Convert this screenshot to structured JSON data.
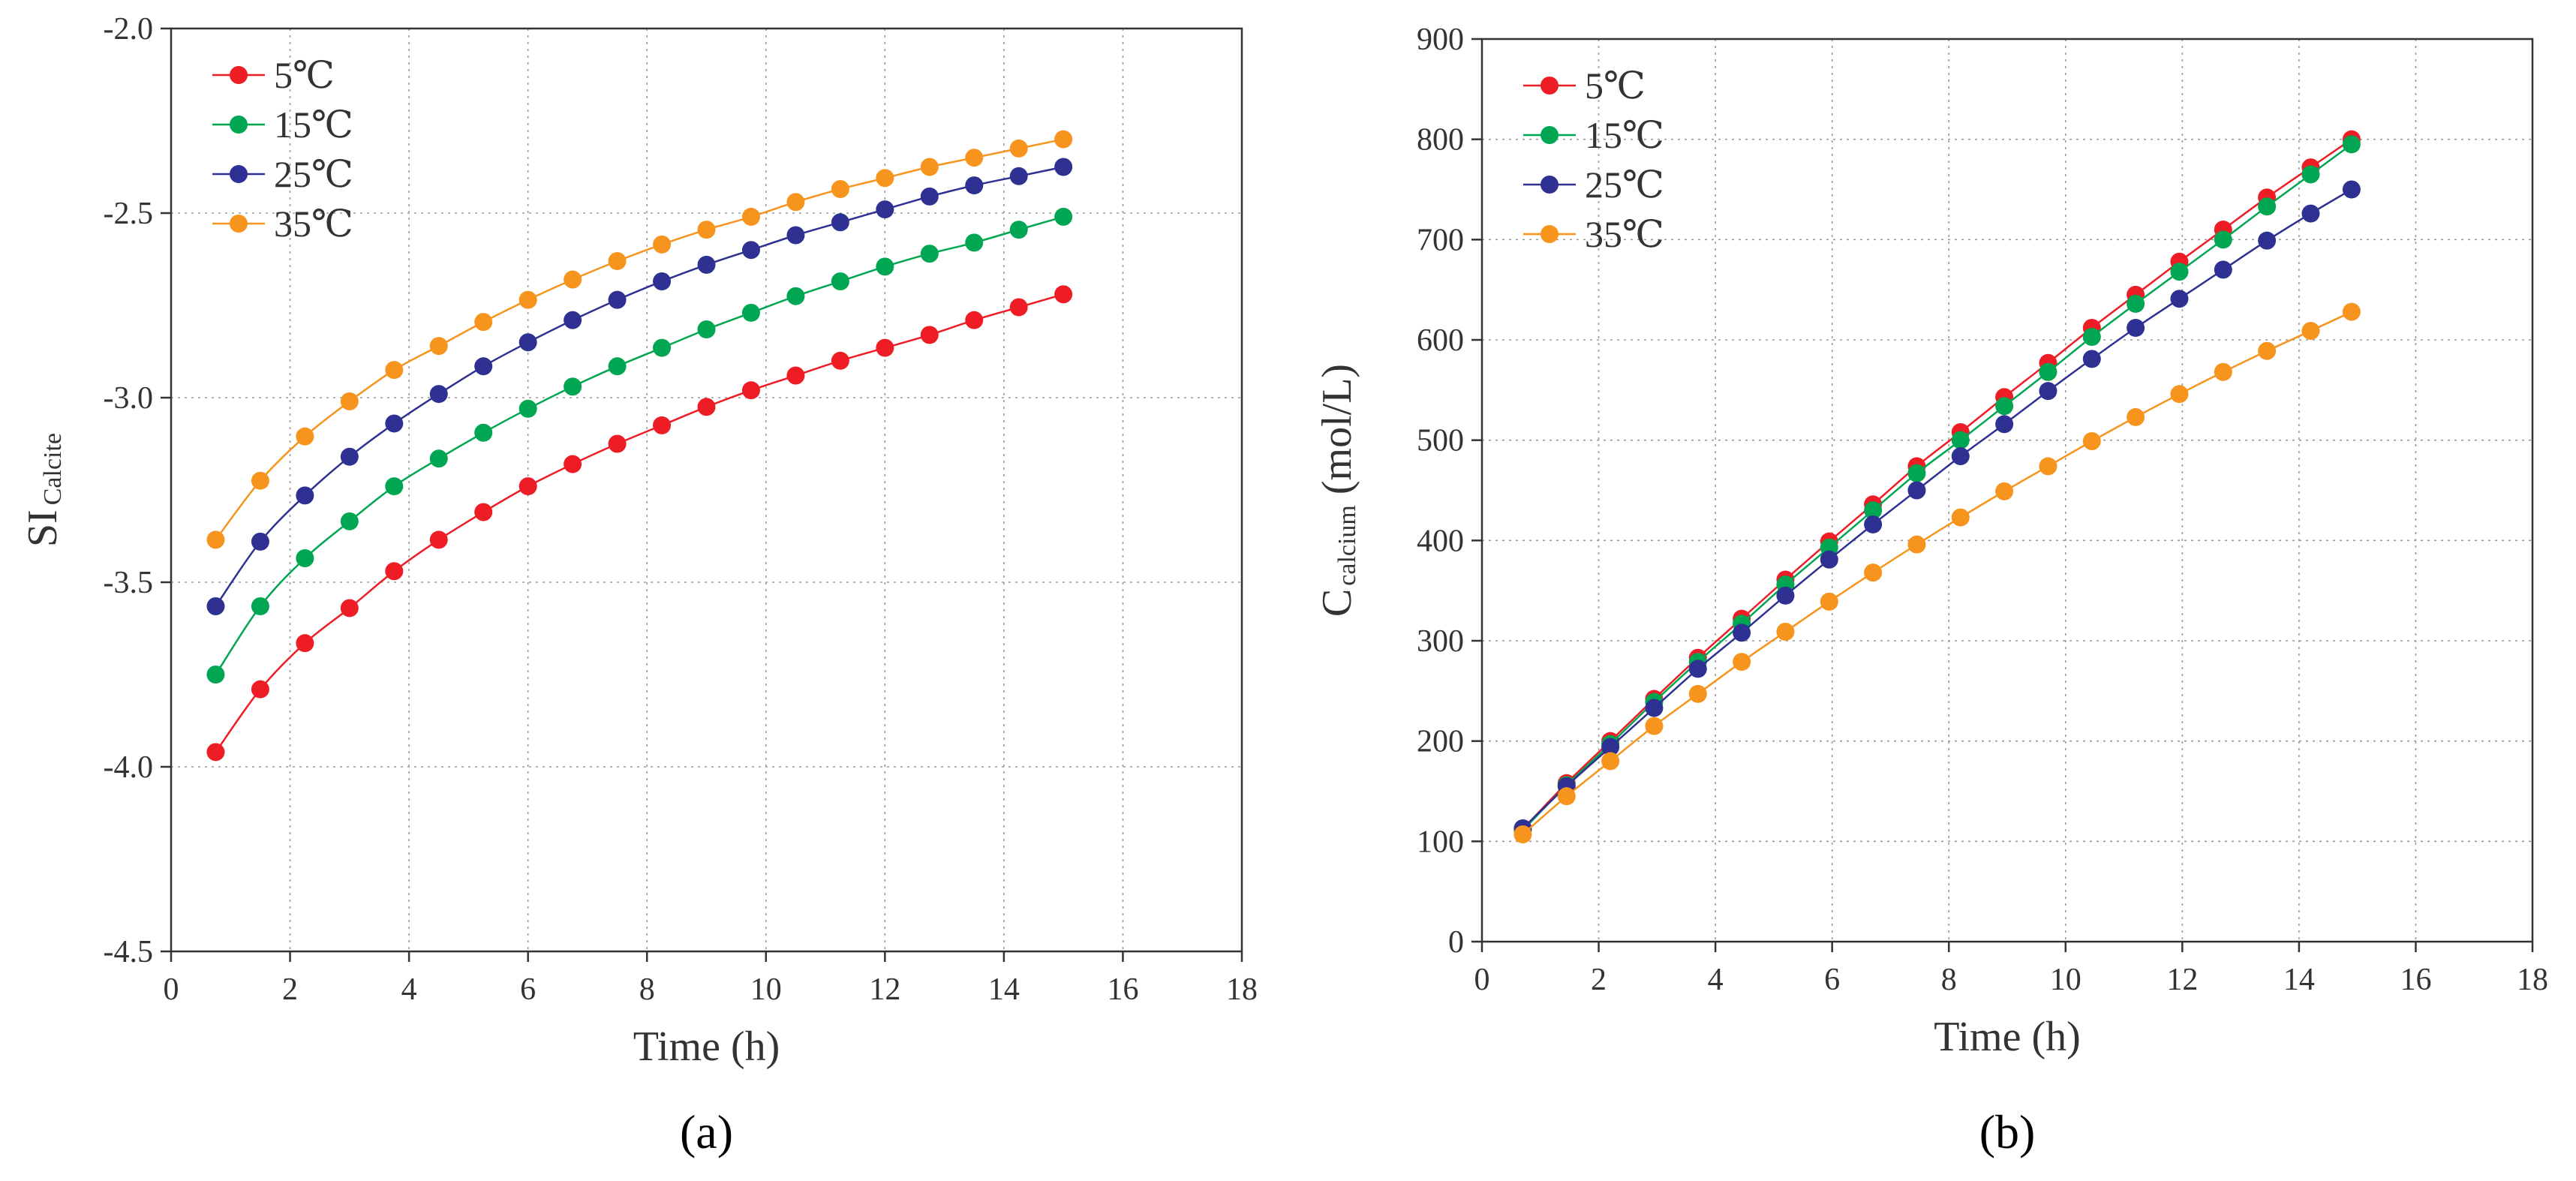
{
  "chart_data": [
    {
      "type": "line",
      "panel_label": "(a)",
      "title": "",
      "xlabel": "Time (h)",
      "ylabel": "SI",
      "ylabel_sub": "Calcite",
      "xlim": [
        0,
        18
      ],
      "ylim": [
        -4.5,
        -2.0
      ],
      "xticks": [
        0,
        2,
        4,
        6,
        8,
        10,
        12,
        14,
        16,
        18
      ],
      "yticks": [
        -4.5,
        -4.0,
        -3.5,
        -3.0,
        -2.5,
        -2.0
      ],
      "ytick_labels": [
        "-4.5",
        "-4.0",
        "-3.5",
        "-3.0",
        "-2.5",
        "-2.0"
      ],
      "grid": true,
      "legend_position": "top-left",
      "x": [
        0.75,
        1.5,
        2.25,
        3.0,
        3.75,
        4.5,
        5.25,
        6.0,
        6.75,
        7.5,
        8.25,
        9.0,
        9.75,
        10.5,
        11.25,
        12.0,
        12.75,
        13.5,
        14.25,
        15.0
      ],
      "series": [
        {
          "name": "5℃",
          "color": "#ee1c25",
          "values": [
            -3.96,
            -3.79,
            -3.665,
            -3.57,
            -3.47,
            -3.385,
            -3.31,
            -3.24,
            -3.18,
            -3.125,
            -3.075,
            -3.025,
            -2.98,
            -2.94,
            -2.9,
            -2.865,
            -2.83,
            -2.79,
            -2.755,
            -2.72
          ]
        },
        {
          "name": "15℃",
          "color": "#00a651",
          "values": [
            -3.75,
            -3.565,
            -3.435,
            -3.335,
            -3.24,
            -3.165,
            -3.095,
            -3.03,
            -2.97,
            -2.915,
            -2.865,
            -2.815,
            -2.77,
            -2.725,
            -2.685,
            -2.645,
            -2.61,
            -2.58,
            -2.545,
            -2.51
          ]
        },
        {
          "name": "25℃",
          "color": "#2e3192",
          "values": [
            -3.565,
            -3.39,
            -3.265,
            -3.16,
            -3.07,
            -2.99,
            -2.915,
            -2.85,
            -2.79,
            -2.735,
            -2.685,
            -2.64,
            -2.6,
            -2.56,
            -2.525,
            -2.49,
            -2.455,
            -2.425,
            -2.4,
            -2.375
          ]
        },
        {
          "name": "35℃",
          "color": "#f7941d",
          "values": [
            -3.385,
            -3.225,
            -3.105,
            -3.01,
            -2.925,
            -2.86,
            -2.795,
            -2.735,
            -2.68,
            -2.63,
            -2.585,
            -2.545,
            -2.51,
            -2.47,
            -2.435,
            -2.405,
            -2.375,
            -2.35,
            -2.325,
            -2.3
          ]
        }
      ]
    },
    {
      "type": "line",
      "panel_label": "(b)",
      "title": "",
      "xlabel": "Time (h)",
      "ylabel": "C",
      "ylabel_sub": "calcium",
      "ylabel_units": " (mol/L)",
      "xlim": [
        0,
        18
      ],
      "ylim": [
        0,
        900
      ],
      "xticks": [
        0,
        2,
        4,
        6,
        8,
        10,
        12,
        14,
        16,
        18
      ],
      "yticks": [
        0,
        100,
        200,
        300,
        400,
        500,
        600,
        700,
        800,
        900
      ],
      "ytick_labels": [
        "0",
        "100",
        "200",
        "300",
        "400",
        "500",
        "600",
        "700",
        "800",
        "900"
      ],
      "grid": true,
      "legend_position": "top-left",
      "x": [
        0.7,
        1.45,
        2.2,
        2.95,
        3.7,
        4.45,
        5.2,
        5.95,
        6.7,
        7.45,
        8.2,
        8.95,
        9.7,
        10.45,
        11.2,
        11.95,
        12.7,
        13.45,
        14.2,
        14.9
      ],
      "series": [
        {
          "name": "5℃",
          "color": "#ee1c25",
          "values": [
            112,
            158,
            200,
            242,
            283,
            322,
            361,
            399,
            436,
            474,
            508,
            543,
            577,
            612,
            645,
            678,
            710,
            742,
            772,
            800
          ]
        },
        {
          "name": "15℃",
          "color": "#00a651",
          "values": [
            111,
            156,
            197,
            239,
            279,
            317,
            356,
            393,
            430,
            467,
            500,
            534,
            568,
            603,
            636,
            668,
            700,
            733,
            765,
            795
          ]
        },
        {
          "name": "25℃",
          "color": "#2e3192",
          "values": [
            113,
            155,
            194,
            233,
            272,
            308,
            345,
            381,
            416,
            450,
            484,
            516,
            549,
            581,
            612,
            641,
            670,
            699,
            726,
            750
          ]
        },
        {
          "name": "35℃",
          "color": "#f7941d",
          "values": [
            107,
            145,
            180,
            215,
            247,
            279,
            309,
            339,
            368,
            396,
            423,
            449,
            474,
            499,
            523,
            546,
            568,
            589,
            609,
            628
          ]
        }
      ]
    }
  ]
}
